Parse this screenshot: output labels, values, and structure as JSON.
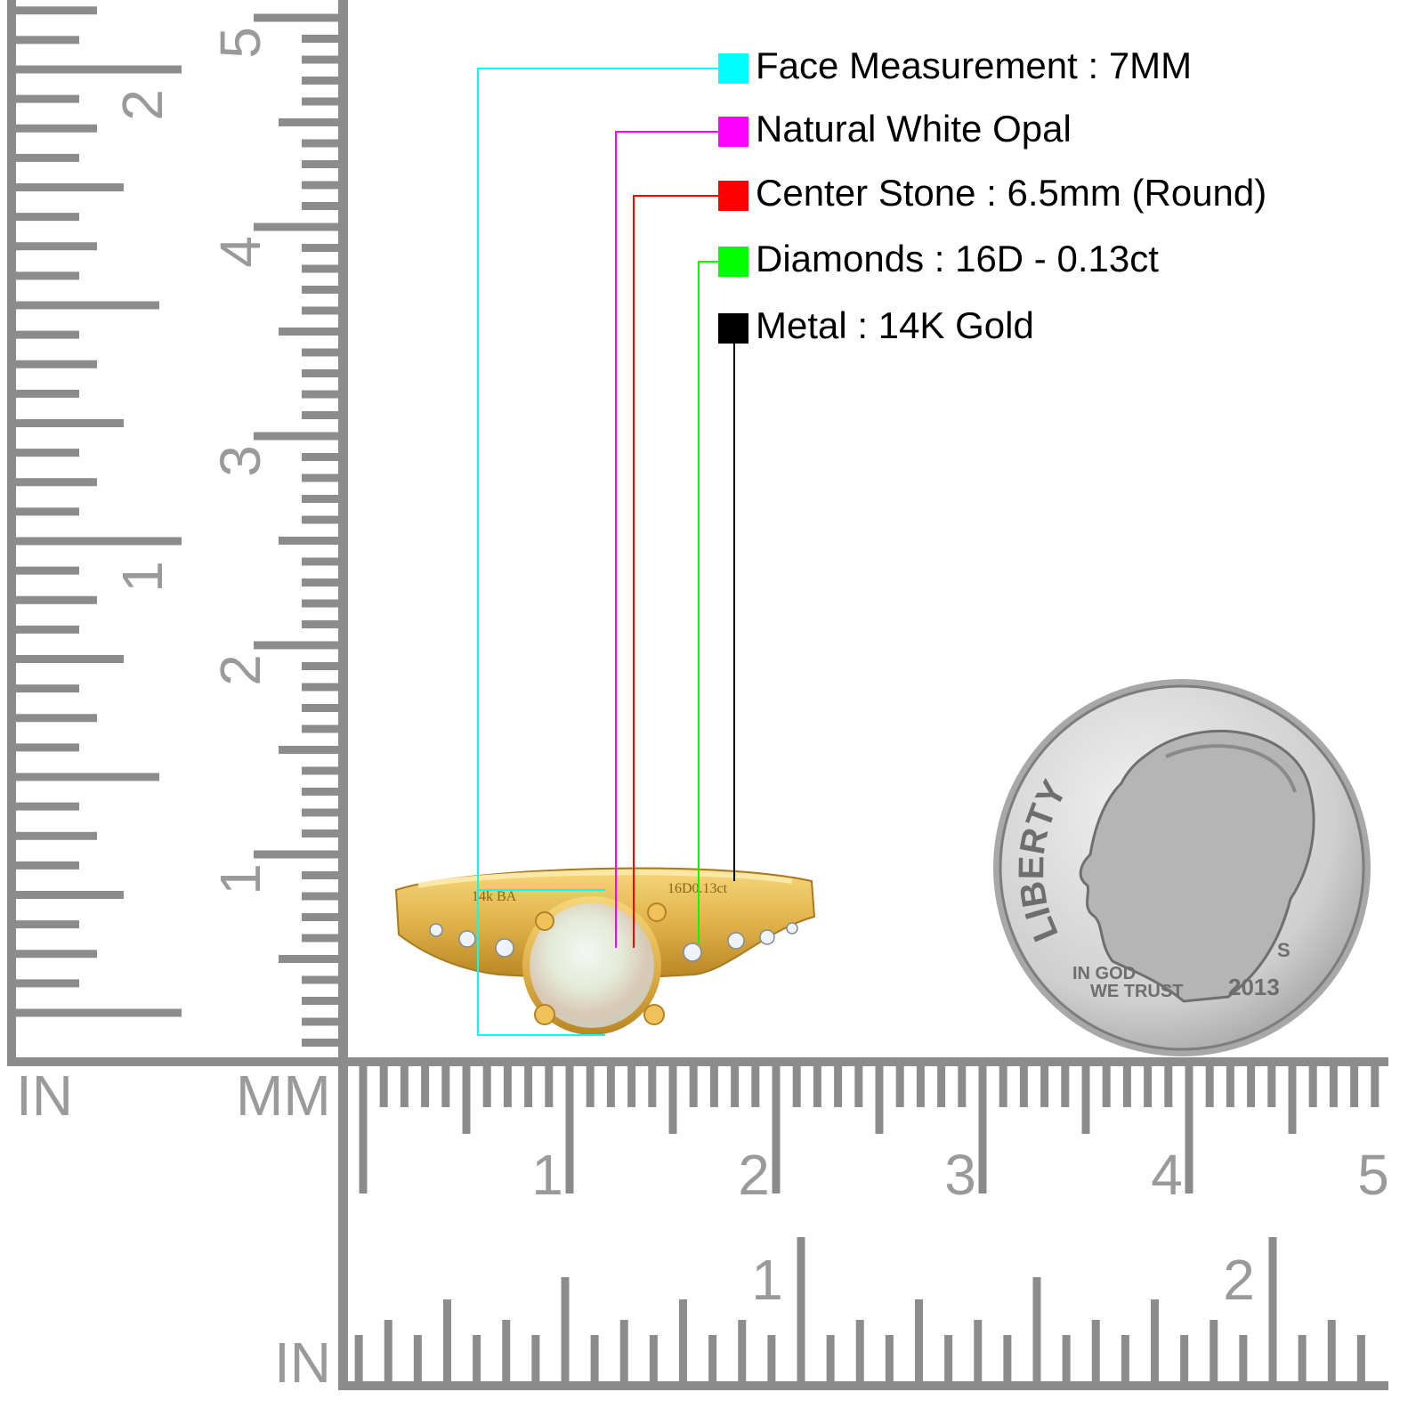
{
  "legend": [
    {
      "label": "Face Measurement : 7MM",
      "color": "#00ffff"
    },
    {
      "label": "Natural White Opal",
      "color": "#ff00ff"
    },
    {
      "label": "Center Stone : 6.5mm (Round)",
      "color": "#ff0000"
    },
    {
      "label": "Diamonds : 16D - 0.13ct",
      "color": "#00ff00"
    },
    {
      "label": "Metal : 14K Gold",
      "color": "#000000"
    }
  ],
  "rulers": {
    "left_in_label": "IN",
    "left_mm_label": "MM",
    "bottom_in_label": "IN",
    "vertical_mm_numbers": [
      "1",
      "2",
      "3",
      "4",
      "5"
    ],
    "vertical_in_numbers": [
      "1",
      "2"
    ],
    "horizontal_mm_numbers": [
      "1",
      "2",
      "3",
      "4",
      "5"
    ],
    "horizontal_in_numbers": [
      "1",
      "2"
    ]
  },
  "ring": {
    "engraving_left": "14k BA",
    "engraving_right": "16D0.13ct"
  },
  "coin": {
    "legend_top": "LIBERTY",
    "motto_line1": "IN GOD",
    "motto_line2": "WE TRUST",
    "mint_mark": "S",
    "year": "2013"
  }
}
